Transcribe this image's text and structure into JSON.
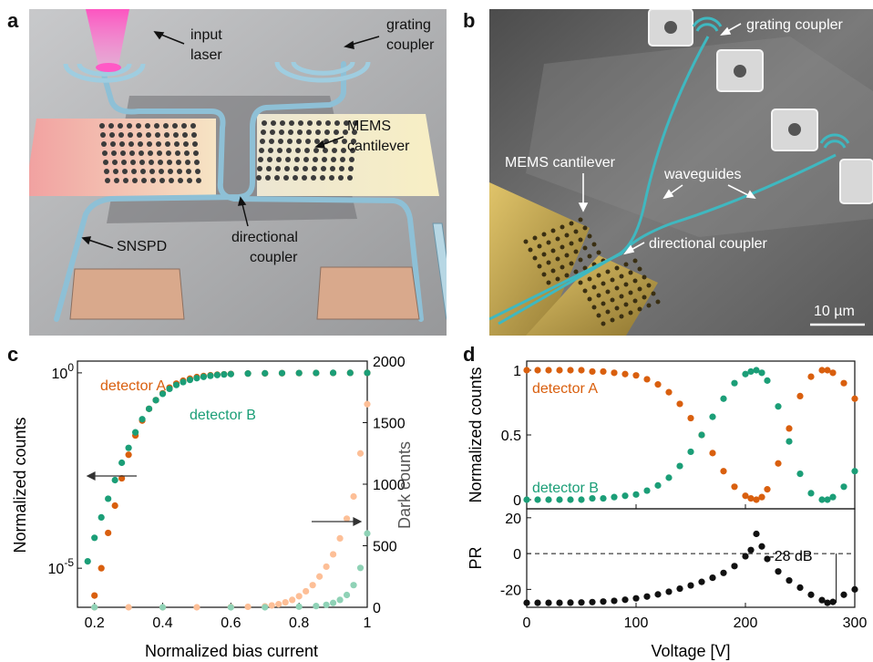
{
  "panels": {
    "a": {
      "letter": "a",
      "labels": {
        "input_laser_1": "input",
        "input_laser_2": "laser",
        "grating_1": "grating",
        "grating_2": "coupler",
        "mems_1": "MEMS",
        "mems_2": "cantilever",
        "snspd": "SNSPD",
        "dir_1": "directional",
        "dir_2": "coupler"
      },
      "colors": {
        "background": "#a9aaac",
        "laser": "#ff3fb8",
        "waveguide": "#7fb3cc",
        "pad": "#d9a98c"
      }
    },
    "b": {
      "letter": "b",
      "labels": {
        "grating": "grating coupler",
        "mems": "MEMS cantilever",
        "waveguides": "waveguides",
        "directional": "directional coupler",
        "scalebar": "10 µm"
      },
      "colors": {
        "background": "#6d6d6d",
        "waveguide": "#3fb8c0",
        "cantilever": "#b89a3a"
      }
    },
    "c": {
      "letter": "c"
    },
    "d": {
      "letter": "d"
    }
  },
  "chart_data": [
    {
      "id": "c",
      "type": "scatter",
      "xlabel": "Normalized bias current",
      "ylabel": "Normalized counts",
      "y2label": "Dark counts",
      "xlim": [
        0.15,
        1.0
      ],
      "ylim": [
        1e-06,
        2
      ],
      "yscale": "log",
      "y2lim": [
        0,
        2000
      ],
      "xticks": [
        "0.2",
        "0.4",
        "0.6",
        "0.8",
        "1"
      ],
      "yticks": [
        "10^0",
        "10^-5"
      ],
      "y2ticks": [
        "0",
        "500",
        "1000",
        "1500",
        "2000"
      ],
      "series_labels": {
        "A": "detector A",
        "B": "detector B"
      },
      "colors": {
        "A": "#d95f0e",
        "B": "#1b9e77",
        "A_dark": "#fdbf97",
        "B_dark": "#8fd2b6"
      },
      "series": [
        {
          "name": "detector A",
          "axis": "left",
          "x": [
            0.2,
            0.22,
            0.24,
            0.26,
            0.28,
            0.3,
            0.32,
            0.34,
            0.36,
            0.38,
            0.4,
            0.42,
            0.44,
            0.46,
            0.48,
            0.5,
            0.52,
            0.54,
            0.56,
            0.58,
            0.6,
            0.65,
            0.7,
            0.75,
            0.8,
            0.85,
            0.9,
            0.95,
            1.0
          ],
          "y": [
            2e-06,
            1e-05,
            8e-05,
            0.0004,
            0.002,
            0.008,
            0.025,
            0.06,
            0.12,
            0.2,
            0.3,
            0.42,
            0.53,
            0.63,
            0.71,
            0.78,
            0.83,
            0.87,
            0.9,
            0.92,
            0.94,
            0.96,
            0.97,
            0.98,
            0.985,
            0.99,
            0.995,
            1.0,
            1.0
          ]
        },
        {
          "name": "detector B",
          "axis": "left",
          "x": [
            0.18,
            0.2,
            0.22,
            0.24,
            0.26,
            0.28,
            0.3,
            0.32,
            0.34,
            0.36,
            0.38,
            0.4,
            0.42,
            0.44,
            0.46,
            0.48,
            0.5,
            0.52,
            0.54,
            0.56,
            0.58,
            0.6,
            0.65,
            0.7,
            0.75,
            0.8,
            0.85,
            0.9,
            0.95,
            1.0
          ],
          "y": [
            1.5e-05,
            6e-05,
            0.0002,
            0.0006,
            0.0018,
            0.005,
            0.012,
            0.03,
            0.065,
            0.12,
            0.2,
            0.29,
            0.39,
            0.49,
            0.58,
            0.66,
            0.73,
            0.79,
            0.84,
            0.88,
            0.91,
            0.93,
            0.96,
            0.975,
            0.985,
            0.99,
            0.995,
            1.0,
            1.0,
            1.0
          ]
        },
        {
          "name": "detector A dark",
          "axis": "right",
          "x": [
            0.2,
            0.3,
            0.4,
            0.5,
            0.6,
            0.65,
            0.7,
            0.72,
            0.74,
            0.76,
            0.78,
            0.8,
            0.82,
            0.84,
            0.86,
            0.88,
            0.9,
            0.92,
            0.94,
            0.96,
            0.98,
            1.0
          ],
          "y": [
            0,
            0,
            0,
            0,
            2,
            4,
            8,
            15,
            25,
            40,
            60,
            90,
            130,
            180,
            250,
            330,
            430,
            560,
            720,
            900,
            1250,
            1650
          ]
        },
        {
          "name": "detector B dark",
          "axis": "right",
          "x": [
            0.2,
            0.4,
            0.6,
            0.7,
            0.8,
            0.85,
            0.88,
            0.9,
            0.92,
            0.94,
            0.96,
            0.98,
            1.0
          ],
          "y": [
            0,
            0,
            0,
            0,
            5,
            10,
            20,
            35,
            60,
            100,
            180,
            320,
            600
          ]
        }
      ]
    },
    {
      "id": "d-top",
      "type": "scatter",
      "xlabel": "Voltage [V]",
      "ylabel": "Normalized counts",
      "xlim": [
        0,
        300
      ],
      "ylim": [
        0,
        1
      ],
      "xticks": [
        "0",
        "100",
        "200",
        "300"
      ],
      "yticks": [
        "0",
        "0.5",
        "1"
      ],
      "series_labels": {
        "A": "detector A",
        "B": "detector B"
      },
      "colors": {
        "A": "#d95f0e",
        "B": "#1b9e77"
      },
      "series": [
        {
          "name": "detector A",
          "x": [
            0,
            10,
            20,
            30,
            40,
            50,
            60,
            70,
            80,
            90,
            100,
            110,
            120,
            130,
            140,
            150,
            160,
            170,
            180,
            190,
            200,
            205,
            210,
            215,
            220,
            230,
            240,
            250,
            260,
            270,
            275,
            280,
            290,
            300
          ],
          "y": [
            1,
            1,
            1,
            1,
            1,
            1,
            0.99,
            0.99,
            0.98,
            0.97,
            0.96,
            0.93,
            0.89,
            0.83,
            0.74,
            0.63,
            0.5,
            0.36,
            0.22,
            0.1,
            0.03,
            0.01,
            0.0,
            0.02,
            0.08,
            0.28,
            0.55,
            0.8,
            0.95,
            1.0,
            1.0,
            0.98,
            0.9,
            0.78
          ]
        },
        {
          "name": "detector B",
          "x": [
            0,
            10,
            20,
            30,
            40,
            50,
            60,
            70,
            80,
            90,
            100,
            110,
            120,
            130,
            140,
            150,
            160,
            170,
            180,
            190,
            200,
            205,
            210,
            215,
            220,
            230,
            240,
            250,
            260,
            270,
            275,
            280,
            290,
            300
          ],
          "y": [
            0,
            0,
            0,
            0,
            0,
            0,
            0.01,
            0.01,
            0.02,
            0.03,
            0.04,
            0.07,
            0.11,
            0.17,
            0.26,
            0.37,
            0.5,
            0.64,
            0.78,
            0.9,
            0.97,
            0.99,
            1.0,
            0.98,
            0.92,
            0.72,
            0.45,
            0.2,
            0.05,
            0.0,
            0.0,
            0.02,
            0.1,
            0.22
          ]
        }
      ]
    },
    {
      "id": "d-bottom",
      "type": "scatter",
      "xlabel": "Voltage [V]",
      "ylabel": "PR",
      "xlim": [
        0,
        300
      ],
      "ylim": [
        -30,
        25
      ],
      "xticks": [
        "0",
        "100",
        "200",
        "300"
      ],
      "yticks": [
        "-20",
        "0",
        "20"
      ],
      "annotation": "-28 dB",
      "colors": {
        "points": "#111111"
      },
      "series": [
        {
          "name": "PR",
          "x": [
            0,
            10,
            20,
            30,
            40,
            50,
            60,
            70,
            80,
            90,
            100,
            110,
            120,
            130,
            140,
            150,
            160,
            170,
            180,
            190,
            200,
            205,
            210,
            215,
            220,
            230,
            240,
            250,
            260,
            270,
            275,
            280,
            290,
            300
          ],
          "y": [
            -27.5,
            -27.5,
            -27.5,
            -27.5,
            -27.4,
            -27.3,
            -27.1,
            -26.8,
            -26.4,
            -25.8,
            -25,
            -24,
            -22.8,
            -21.3,
            -19.6,
            -17.8,
            -15.8,
            -13.5,
            -10.8,
            -7,
            -1.5,
            2,
            11,
            4,
            -3,
            -10,
            -15,
            -19,
            -23,
            -26,
            -27.5,
            -27,
            -23,
            -20
          ]
        }
      ]
    }
  ]
}
